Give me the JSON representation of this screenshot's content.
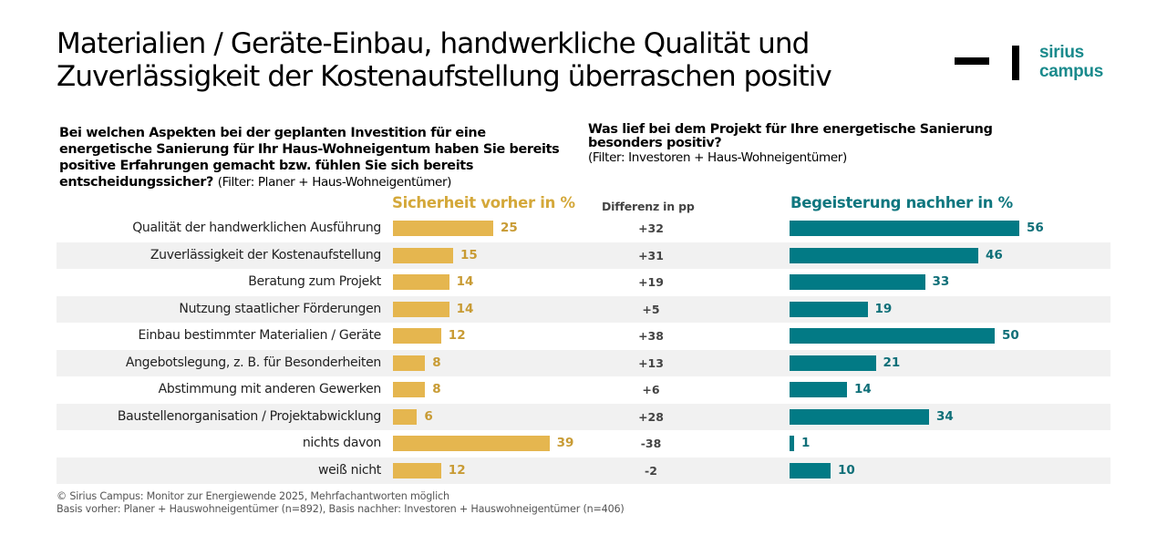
{
  "title": {
    "line1": "Materialien / Geräte-Einbau, handwerkliche Qualität und",
    "line2": "Zuverlässigkeit der Kostenaufstellung überraschen positiv"
  },
  "logo": {
    "line1": "sirius",
    "line2": "campus",
    "color": "#1a8a8c"
  },
  "question_left": {
    "text": "Bei welchen Aspekten bei der geplanten Investition für eine energetische Sanierung für Ihr Haus-Wohneigentum haben Sie bereits positive Erfahrungen gemacht bzw. fühlen Sie sich bereits entscheidungssicher?",
    "filter": "(Filter: Planer + Haus-Wohneigentümer)"
  },
  "question_right": {
    "text": "Was lief bei dem Projekt für Ihre energetische Sanierung besonders positiv?",
    "filter": "(Filter: Investoren + Haus-Wohneigentümer)"
  },
  "footer": {
    "line1": "© Sirius Campus: Monitor zur Energiewende 2025, Mehrfachantworten möglich",
    "line2": "Basis vorher: Planer + Hauswohneigentümer (n=892), Basis nachher: Investoren + Hauswohneigentümer (n=406)"
  },
  "chart_data": {
    "type": "bar",
    "orientation": "horizontal",
    "title": "Materialien / Geräte-Einbau, handwerkliche Qualität und Zuverlässigkeit der Kostenaufstellung überraschen positiv",
    "categories": [
      "Qualität der handwerklichen Ausführung",
      "Zuverlässigkeit der Kostenaufstellung",
      "Beratung zum Projekt",
      "Nutzung staatlicher Förderungen",
      "Einbau bestimmter Materialien / Geräte",
      "Angebotslegung, z. B. für Besonderheiten",
      "Abstimmung mit anderen Gewerken",
      "Baustellenorganisation /  Projektabwicklung",
      "nichts davon",
      "weiß nicht"
    ],
    "series": [
      {
        "name": "Sicherheit vorher in %",
        "color": "#e5b64f",
        "label_color": "#c89b34",
        "values": [
          25,
          15,
          14,
          14,
          12,
          8,
          8,
          6,
          39,
          12
        ]
      },
      {
        "name": "Begeisterung nachher in %",
        "color": "#027a85",
        "label_color": "#0f6f78",
        "values": [
          56,
          46,
          33,
          19,
          50,
          21,
          14,
          34,
          1,
          10
        ]
      }
    ],
    "difference": {
      "name": "Differenz in pp",
      "values": [
        "+32",
        "+31",
        "+19",
        "+5",
        "+38",
        "+13",
        "+6",
        "+28",
        "-38",
        "-2"
      ]
    },
    "xlabel": "",
    "ylabel": "",
    "xlim": [
      0,
      60
    ],
    "grid": false,
    "legend": "column-headers"
  }
}
